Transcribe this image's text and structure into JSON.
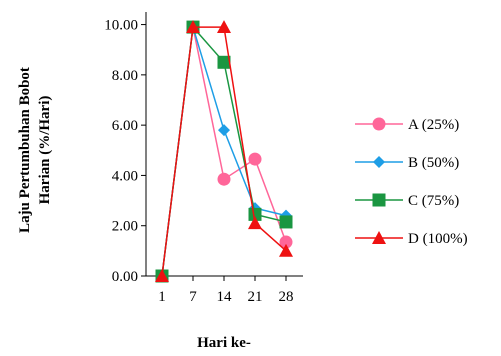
{
  "chart_data": {
    "type": "line",
    "title": "",
    "xlabel": "Hari ke-",
    "ylabel_lines": [
      "Laju Pertumbuhan Bobot",
      "Harian (%/Hari)"
    ],
    "categories": [
      "1",
      "7",
      "14",
      "21",
      "28"
    ],
    "yticks": [
      "0.00",
      "2.00",
      "4.00",
      "6.00",
      "8.00",
      "10.00"
    ],
    "ylim": [
      0,
      10.5
    ],
    "grid": false,
    "legend_position": "right",
    "series": [
      {
        "name": "A (25%)",
        "color": "#ff6699",
        "marker": "circle",
        "values": [
          0,
          9.9,
          3.85,
          4.65,
          1.35
        ]
      },
      {
        "name": "B (50%)",
        "color": "#1e9ee6",
        "marker": "diamond",
        "values": [
          0,
          9.9,
          5.8,
          2.7,
          2.4
        ]
      },
      {
        "name": "C (75%)",
        "color": "#1a9641",
        "marker": "square",
        "values": [
          0,
          9.9,
          8.5,
          2.45,
          2.15
        ]
      },
      {
        "name": "D (100%)",
        "color": "#ee1111",
        "marker": "triangle",
        "values": [
          0,
          9.9,
          9.9,
          2.1,
          1.0
        ]
      }
    ]
  }
}
